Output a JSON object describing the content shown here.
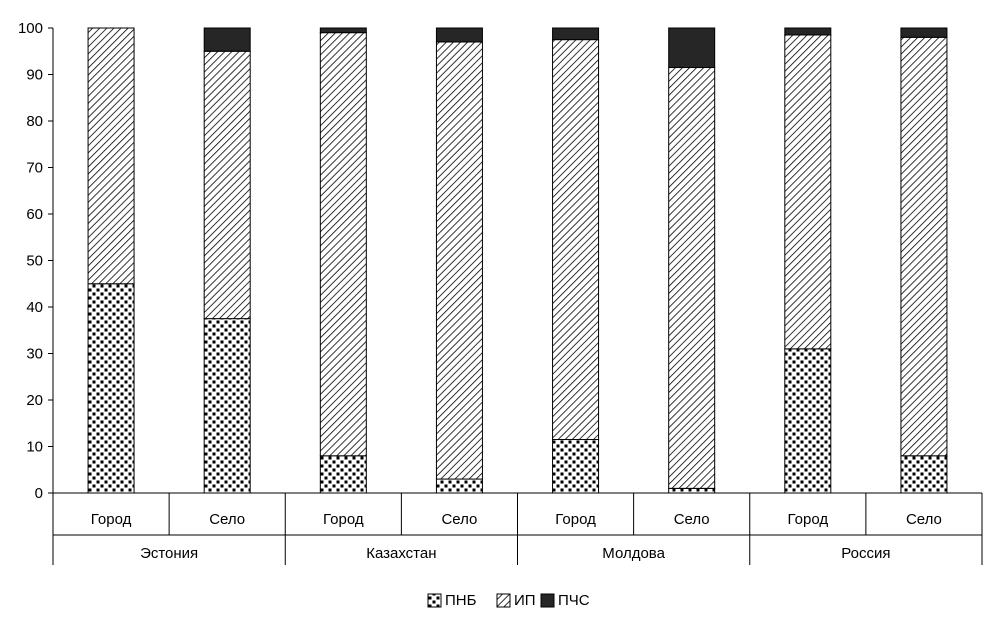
{
  "chart_data": {
    "type": "bar",
    "stacked": true,
    "ylim": [
      0,
      100
    ],
    "yticks": [
      0,
      10,
      20,
      30,
      40,
      50,
      60,
      70,
      80,
      90,
      100
    ],
    "groups": [
      "Эстония",
      "Казахстан",
      "Молдова",
      "Россия"
    ],
    "categories": [
      "Город",
      "Село",
      "Город",
      "Село",
      "Город",
      "Село",
      "Город",
      "Село"
    ],
    "series": [
      {
        "name": "ПНБ",
        "values": [
          45,
          37.5,
          8,
          3,
          11.5,
          1,
          31,
          8
        ]
      },
      {
        "name": "ИП",
        "values": [
          55,
          57.5,
          91,
          94,
          86,
          90.5,
          67.5,
          90
        ]
      },
      {
        "name": "ПЧС",
        "values": [
          0,
          5,
          1,
          3,
          2.5,
          8.5,
          1.5,
          2
        ]
      }
    ],
    "legend_position": "bottom",
    "grid": false
  }
}
